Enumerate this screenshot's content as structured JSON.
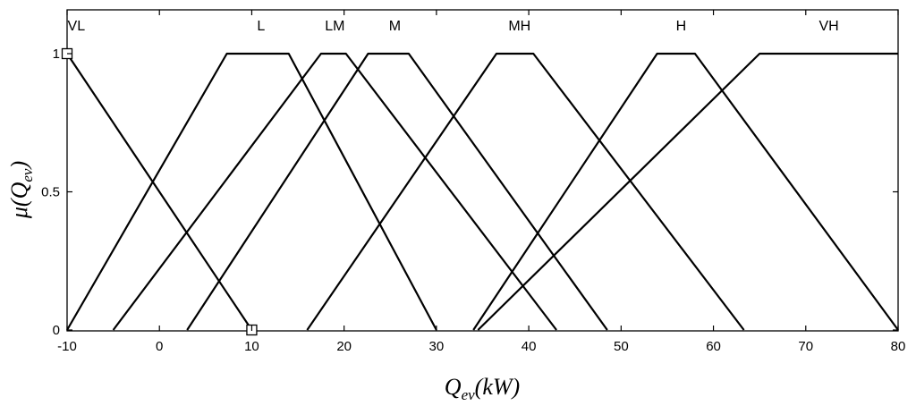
{
  "chart_data": {
    "type": "line",
    "xlabel": {
      "main": "Q",
      "sub": "ev",
      "rest": "(kW)"
    },
    "ylabel": {
      "main": "μ(Q",
      "sub": "ev",
      "rest": ")"
    },
    "xlim": [
      -10,
      80
    ],
    "ylim": [
      0,
      1
    ],
    "xticks": [
      -10,
      0,
      10,
      20,
      30,
      40,
      50,
      60,
      70,
      80
    ],
    "yticks": [
      {
        "value": 0,
        "label": "0"
      },
      {
        "value": 0.5,
        "label": "0.5"
      },
      {
        "value": 1,
        "label": "1"
      }
    ],
    "grid": false,
    "legend": "none",
    "line_color": "#000000",
    "series": [
      {
        "name": "VL",
        "label_x": -9,
        "x": [
          -10,
          10
        ],
        "y": [
          1,
          0
        ]
      },
      {
        "name": "L",
        "label_x": 11,
        "x": [
          -10,
          7.3,
          14,
          30
        ],
        "y": [
          0,
          1,
          1,
          0
        ]
      },
      {
        "name": "LM",
        "label_x": 19,
        "x": [
          -5,
          17.5,
          20.2,
          43
        ],
        "y": [
          0,
          1,
          1,
          0
        ]
      },
      {
        "name": "M",
        "label_x": 25.5,
        "x": [
          3,
          22.6,
          27,
          48.5
        ],
        "y": [
          0,
          1,
          1,
          0
        ]
      },
      {
        "name": "MH",
        "label_x": 39,
        "x": [
          16,
          36.5,
          40.5,
          63.3
        ],
        "y": [
          0,
          1,
          1,
          0
        ]
      },
      {
        "name": "H",
        "label_x": 56.5,
        "x": [
          34,
          53.9,
          58,
          80
        ],
        "y": [
          0,
          1,
          1,
          0
        ]
      },
      {
        "name": "VH",
        "label_x": 72.5,
        "x": [
          34.5,
          65,
          80
        ],
        "y": [
          0,
          1,
          1
        ]
      }
    ],
    "markers": [
      {
        "x": -10,
        "y": 1
      },
      {
        "x": 10,
        "y": 0
      }
    ]
  }
}
